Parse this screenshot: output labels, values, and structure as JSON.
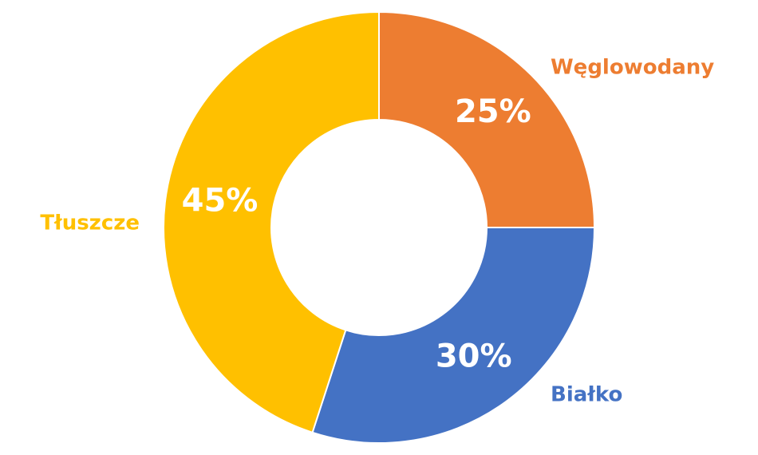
{
  "chart_data": {
    "type": "pie",
    "categories": [
      "Węglowodany",
      "Białko",
      "Tłuszcze"
    ],
    "values": [
      25,
      30,
      45
    ],
    "value_labels": [
      "25%",
      "30%",
      "45%"
    ],
    "colors": [
      "#ED7D31",
      "#4472C4",
      "#FFC000"
    ]
  }
}
